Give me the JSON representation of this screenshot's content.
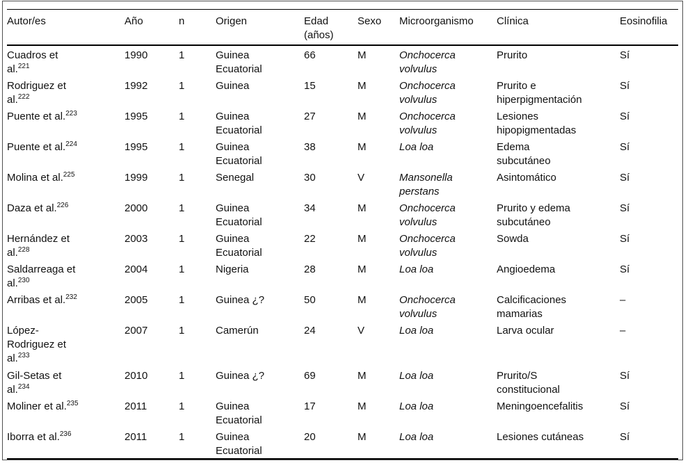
{
  "table": {
    "columns": [
      {
        "key": "autor",
        "label": "Autor/es",
        "width": 169
      },
      {
        "key": "anio",
        "label": "Año",
        "width": 78
      },
      {
        "key": "n",
        "label": "n",
        "width": 53
      },
      {
        "key": "origen",
        "label": "Origen",
        "width": 127
      },
      {
        "key": "edad",
        "label": "Edad\n(años)",
        "width": 77
      },
      {
        "key": "sexo",
        "label": "Sexo",
        "width": 60
      },
      {
        "key": "micro",
        "label": "Microorganismo",
        "width": 140
      },
      {
        "key": "clinica",
        "label": "Clínica",
        "width": 177
      },
      {
        "key": "eos",
        "label": "Eosinofilia",
        "width": 84
      }
    ],
    "rows": [
      {
        "autor": "Cuadros et\nal.",
        "ref": "221",
        "anio": "1990",
        "n": "1",
        "origen": "Guinea\nEcuatorial",
        "edad": "66",
        "sexo": "M",
        "micro": "Onchocerca\nvolvulus",
        "clinica": "Prurito",
        "eos": "Sí",
        "tall": false
      },
      {
        "autor": "Rodriguez et\nal.",
        "ref": "222",
        "anio": "1992",
        "n": "1",
        "origen": "Guinea",
        "edad": "15",
        "sexo": "M",
        "micro": "Onchocerca\nvolvulus",
        "clinica": "Prurito e\nhiperpigmentación",
        "eos": "Sí",
        "tall": false
      },
      {
        "autor": "Puente et al.",
        "ref": "223",
        "anio": "1995",
        "n": "1",
        "origen": "Guinea\nEcuatorial",
        "edad": "27",
        "sexo": "M",
        "micro": "Onchocerca\nvolvulus",
        "clinica": "Lesiones\nhipopigmentadas",
        "eos": "Sí",
        "tall": false
      },
      {
        "autor": "Puente et al.",
        "ref": "224",
        "anio": "1995",
        "n": "1",
        "origen": "Guinea\nEcuatorial",
        "edad": "38",
        "sexo": "M",
        "micro": "Loa loa",
        "clinica": "Edema\nsubcutáneo",
        "eos": "Sí",
        "tall": false
      },
      {
        "autor": "Molina et al.",
        "ref": "225",
        "anio": "1999",
        "n": "1",
        "origen": "Senegal",
        "edad": "30",
        "sexo": "V",
        "micro": "Mansonella\nperstans",
        "clinica": "Asintomático",
        "eos": "Sí",
        "tall": false
      },
      {
        "autor": "Daza et al.",
        "ref": "226",
        "anio": "2000",
        "n": "1",
        "origen": "Guinea\nEcuatorial",
        "edad": "34",
        "sexo": "M",
        "micro": "Onchocerca\nvolvulus",
        "clinica": "Prurito y edema\nsubcutáneo",
        "eos": "Sí",
        "tall": false
      },
      {
        "autor": "Hernández et\nal.",
        "ref": "228",
        "anio": "2003",
        "n": "1",
        "origen": "Guinea\nEcuatorial",
        "edad": "22",
        "sexo": "M",
        "micro": "Onchocerca\nvolvulus",
        "clinica": "Sowda",
        "eos": "Sí",
        "tall": false
      },
      {
        "autor": "Saldarreaga et\nal.",
        "ref": "230",
        "anio": "2004",
        "n": "1",
        "origen": "Nigeria",
        "edad": "28",
        "sexo": "M",
        "micro": "Loa loa",
        "clinica": "Angioedema",
        "eos": "Sí",
        "tall": false
      },
      {
        "autor": "Arribas et al.",
        "ref": "232",
        "anio": "2005",
        "n": "1",
        "origen": "Guinea ¿?",
        "edad": "50",
        "sexo": "M",
        "micro": "Onchocerca\nvolvulus",
        "clinica": "Calcificaciones\nmamarias",
        "eos": "–",
        "tall": false
      },
      {
        "autor": "López-\nRodriguez et\nal.",
        "ref": "233",
        "anio": "2007",
        "n": "1",
        "origen": "Camerún",
        "edad": "24",
        "sexo": "V",
        "micro": "Loa loa",
        "clinica": "Larva ocular",
        "eos": "–",
        "tall": true
      },
      {
        "autor": "Gil-Setas et\nal.",
        "ref": "234",
        "anio": "2010",
        "n": "1",
        "origen": "Guinea ¿?",
        "edad": "69",
        "sexo": "M",
        "micro": "Loa loa",
        "clinica": "Prurito/S\nconstitucional",
        "eos": "Sí",
        "tall": false
      },
      {
        "autor": "Moliner et al.",
        "ref": "235",
        "anio": "2011",
        "n": "1",
        "origen": "Guinea\nEcuatorial",
        "edad": "17",
        "sexo": "M",
        "micro": "Loa loa",
        "clinica": "Meningoencefalitis",
        "eos": "Sí",
        "tall": false
      },
      {
        "autor": "Iborra et al.",
        "ref": "236",
        "anio": "2011",
        "n": "1",
        "origen": "Guinea\nEcuatorial",
        "edad": "20",
        "sexo": "M",
        "micro": "Loa loa",
        "clinica": "Lesiones cutáneas",
        "eos": "Sí",
        "tall": false
      }
    ]
  },
  "colors": {
    "rule": "#000000",
    "frame": "#4f4f4f",
    "text": "#111111"
  }
}
